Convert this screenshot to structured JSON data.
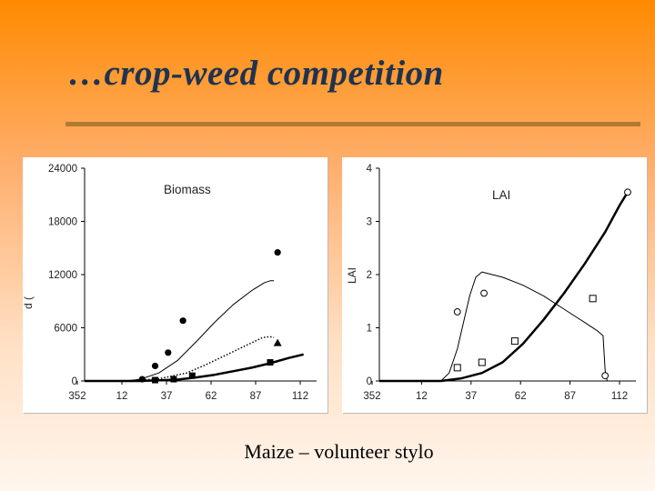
{
  "slide": {
    "title": "…crop-weed competition",
    "caption": "Maize – volunteer stylo"
  },
  "chart_data": [
    {
      "type": "line",
      "title": "Biomass",
      "ylabel": "d ( ",
      "xlabel": "",
      "x_ticks": [
        "352",
        "12",
        "37",
        "62",
        "87",
        "112"
      ],
      "y_ticks": [
        "0",
        "6000",
        "12000",
        "18000",
        "24000"
      ],
      "xlim": [
        0,
        125
      ],
      "ylim": [
        0,
        24000
      ],
      "grid": false,
      "series": [
        {
          "style": "line",
          "color": "#000000",
          "width": 1,
          "x": [
            0,
            22,
            30,
            40,
            50,
            60,
            70,
            80,
            90,
            97,
            100,
            102
          ],
          "y": [
            0,
            0,
            200,
            900,
            2300,
            4400,
            6600,
            8600,
            10200,
            11100,
            11300,
            11300
          ]
        },
        {
          "style": "dotted-line",
          "color": "#000000",
          "width": 1.5,
          "x": [
            0,
            22,
            40,
            55,
            65,
            75,
            85,
            92,
            96,
            100,
            102
          ],
          "y": [
            0,
            0,
            250,
            900,
            1800,
            2800,
            3800,
            4500,
            4900,
            5000,
            4900
          ]
        },
        {
          "style": "line",
          "color": "#000000",
          "width": 2.5,
          "x": [
            0,
            30,
            50,
            60,
            70,
            80,
            90,
            100,
            110,
            118
          ],
          "y": [
            0,
            0,
            150,
            400,
            700,
            1100,
            1500,
            2000,
            2600,
            3000
          ]
        },
        {
          "style": "markers",
          "marker": "circle-filled",
          "x": [
            31,
            38,
            45,
            53,
            104
          ],
          "y": [
            200,
            1700,
            3200,
            6800,
            14500
          ]
        },
        {
          "style": "markers",
          "marker": "triangle-filled",
          "x": [
            104
          ],
          "y": [
            4300
          ]
        },
        {
          "style": "markers",
          "marker": "square-filled",
          "x": [
            38,
            48,
            58,
            100
          ],
          "y": [
            100,
            200,
            600,
            2100
          ]
        }
      ]
    },
    {
      "type": "line",
      "title": "LAI",
      "ylabel": "LAI",
      "xlabel": "",
      "x_ticks": [
        "352",
        "12",
        "37",
        "62",
        "87",
        "112"
      ],
      "y_ticks": [
        "0",
        "1",
        "2",
        "3",
        "4"
      ],
      "xlim": [
        0,
        125
      ],
      "ylim": [
        0,
        4
      ],
      "grid": false,
      "series": [
        {
          "style": "line",
          "color": "#000000",
          "width": 1,
          "x": [
            0,
            30,
            34,
            38,
            41,
            44,
            47,
            50,
            60,
            70,
            80,
            90,
            100,
            106,
            109,
            110,
            111
          ],
          "y": [
            0,
            0,
            0.15,
            0.6,
            1.1,
            1.6,
            1.95,
            2.05,
            1.95,
            1.8,
            1.6,
            1.35,
            1.1,
            0.95,
            0.85,
            0.2,
            0
          ]
        },
        {
          "style": "line",
          "color": "#000000",
          "width": 2.5,
          "x": [
            0,
            30,
            40,
            50,
            60,
            70,
            80,
            90,
            100,
            110,
            117,
            121
          ],
          "y": [
            0,
            0,
            0.05,
            0.15,
            0.35,
            0.7,
            1.15,
            1.65,
            2.2,
            2.8,
            3.3,
            3.55
          ]
        },
        {
          "style": "markers",
          "marker": "circle-open",
          "x": [
            38,
            51,
            110,
            121
          ],
          "y": [
            1.3,
            1.65,
            0.1,
            3.55
          ]
        },
        {
          "style": "markers",
          "marker": "square-open",
          "x": [
            38,
            50,
            66,
            104
          ],
          "y": [
            0.25,
            0.35,
            0.75,
            1.55
          ]
        }
      ]
    }
  ]
}
